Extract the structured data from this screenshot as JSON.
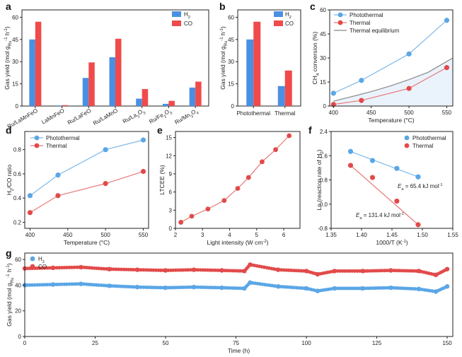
{
  "colors": {
    "blue_bar": "#4a90e2",
    "red_bar": "#f04a4a",
    "blue_point": "#5aa6e6",
    "blue_line": "#7fb8ea",
    "red_point": "#e24a4a",
    "red_line": "#e87878",
    "equilibrium_line": "#888888",
    "equilibrium_fill": "#eaf3fb"
  },
  "chart_data": [
    {
      "panel": "a",
      "type": "bar",
      "ylabel": "Gas yield (mol g_Ru^-1 h^-1)",
      "ylabel_parts": {
        "main": "Gas yield (mol g",
        "sub": "Ru",
        "sup": "-1",
        "tail": " h",
        "sup2": "-1",
        "close": ")"
      },
      "ylim": [
        0,
        65
      ],
      "yticks": [
        0,
        15,
        30,
        45,
        60
      ],
      "categories": [
        "Ru/LaMnFeO",
        "LaMnFeO",
        "Ru/LaFeO",
        "Ru/LaMnO",
        "Ru/La2O3",
        "Ru/Fe2O3",
        "Ru/Mn3O4"
      ],
      "category_labels": [
        {
          "main": "Ru/LaMnFeO"
        },
        {
          "main": "LaMnFeO"
        },
        {
          "main": "Ru/LaFeO"
        },
        {
          "main": "Ru/LaMnO"
        },
        {
          "main": "Ru/La",
          "sub": "2",
          "tail": "O",
          "sub2": "3"
        },
        {
          "main": "Ru/Fe",
          "sub": "2",
          "tail": "O",
          "sub2": "3"
        },
        {
          "main": "Ru/Mn",
          "sub": "3",
          "tail": "O",
          "sub2": "4"
        }
      ],
      "series": [
        {
          "name": "H2",
          "label_main": "H",
          "label_sub": "2",
          "color": "#4a90e2",
          "values": [
            45,
            0.4,
            19,
            33,
            5,
            1.5,
            12.5
          ]
        },
        {
          "name": "CO",
          "label_main": "CO",
          "color": "#f04a4a",
          "values": [
            57,
            0.6,
            29.5,
            45.5,
            11.5,
            3.5,
            16.5
          ]
        }
      ]
    },
    {
      "panel": "b",
      "type": "bar",
      "ylabel": "Gas yield (mol g_Ru^-1 h^-1)",
      "ylabel_parts": {
        "main": "Gas yield (mol g",
        "sub": "Ru",
        "sup": "-1",
        "tail": " h",
        "sup2": "-1",
        "close": ")"
      },
      "ylim": [
        0,
        65
      ],
      "yticks": [
        0,
        15,
        30,
        45,
        60
      ],
      "categories": [
        "Photothermal",
        "Thermal"
      ],
      "series": [
        {
          "name": "H2",
          "label_main": "H",
          "label_sub": "2",
          "color": "#4a90e2",
          "values": [
            45,
            13.5
          ]
        },
        {
          "name": "CO",
          "label_main": "CO",
          "color": "#f04a4a",
          "values": [
            57,
            24
          ]
        }
      ]
    },
    {
      "panel": "c",
      "type": "line",
      "xlabel": "Temperature (°C)",
      "ylabel": "CH4 conversion (%)",
      "ylabel_parts": {
        "main": "CH",
        "sub": "4",
        "tail": " conversion (%)"
      },
      "xlim": [
        395,
        558
      ],
      "ylim": [
        0,
        60
      ],
      "xticks": [
        400,
        450,
        500,
        550
      ],
      "yticks": [
        0,
        15,
        30,
        45,
        60
      ],
      "series": [
        {
          "name": "Photothermal",
          "x": [
            400,
            437,
            500,
            550
          ],
          "y": [
            8,
            16,
            32.5,
            53.5
          ]
        },
        {
          "name": "Thermal",
          "x": [
            400,
            437,
            500,
            550
          ],
          "y": [
            1,
            3.5,
            11,
            24
          ]
        },
        {
          "name": "Thermal equilibrium",
          "x": [
            400,
            425,
            450,
            475,
            500,
            525,
            558
          ],
          "y": [
            3,
            6,
            9,
            12.5,
            16.5,
            21,
            30
          ]
        }
      ]
    },
    {
      "panel": "d",
      "type": "line",
      "xlabel": "Temperature (°C)",
      "ylabel": "H2/CO ratio",
      "ylabel_parts": {
        "main": "H",
        "sub": "2",
        "tail": "/CO ratio"
      },
      "xlim": [
        393,
        557
      ],
      "ylim": [
        0.15,
        0.95
      ],
      "xticks": [
        400,
        450,
        500,
        550
      ],
      "yticks": [
        0.2,
        0.4,
        0.6,
        0.8
      ],
      "series": [
        {
          "name": "Photothermal",
          "x": [
            400,
            437,
            500,
            550
          ],
          "y": [
            0.42,
            0.59,
            0.8,
            0.88
          ]
        },
        {
          "name": "Thermal",
          "x": [
            400,
            437,
            500,
            550
          ],
          "y": [
            0.28,
            0.42,
            0.52,
            0.62
          ]
        }
      ]
    },
    {
      "panel": "e",
      "type": "line",
      "xlabel": "Light intensity (W cm-2)",
      "xlabel_parts": {
        "main": "Light intensity (W cm",
        "sup": "-2",
        "close": ")"
      },
      "ylabel": "LTCEE (%)",
      "xlim": [
        2,
        6.6
      ],
      "ylim": [
        0,
        16
      ],
      "xticks": [
        2,
        3,
        4,
        5,
        6
      ],
      "yticks": [
        0,
        3,
        6,
        9,
        12,
        15
      ],
      "series": [
        {
          "name": "LTCEE",
          "x": [
            2.2,
            2.6,
            3.2,
            3.8,
            4.3,
            4.7,
            5.2,
            5.7,
            6.2
          ],
          "y": [
            1,
            2,
            3.2,
            4.6,
            6.6,
            8.4,
            11,
            13,
            15.3
          ]
        }
      ]
    },
    {
      "panel": "f",
      "type": "scatter",
      "xlabel": "1000/T (K-1)",
      "xlabel_parts": {
        "main": "1000/T (K",
        "sup": "-1",
        "close": ")"
      },
      "ylabel": "Ln (reaction rate of H2)",
      "ylabel_parts": {
        "main": "Ln (reaction rate of H",
        "sub": "2",
        "close": ")"
      },
      "xlim": [
        1.35,
        1.55
      ],
      "ylim": [
        -0.8,
        2.4
      ],
      "xticks": [
        1.35,
        1.4,
        1.45,
        1.5,
        1.55
      ],
      "xtick_labels": [
        "1.35",
        "1.40",
        "1.45",
        "1.50",
        "1.55"
      ],
      "yticks": [
        -0.8,
        0.0,
        0.8,
        1.6,
        2.4
      ],
      "ytick_labels": [
        "-0.8",
        "0.0",
        "0.8",
        "1.6",
        "2.4"
      ],
      "series": [
        {
          "name": "Photothermal",
          "x": [
            1.382,
            1.418,
            1.458,
            1.493
          ],
          "y": [
            1.74,
            1.44,
            1.18,
            0.9
          ]
        },
        {
          "name": "Thermal",
          "x": [
            1.382,
            1.418,
            1.458,
            1.493
          ],
          "y": [
            1.28,
            0.88,
            0.1,
            -0.68
          ]
        }
      ],
      "annotations": [
        {
          "var": "E",
          "sub": "a",
          "text": " = 65.4 kJ mol",
          "sup": "-1"
        },
        {
          "var": "E",
          "sub": "a",
          "text": " = 131.4 kJ mol",
          "sup": "-1"
        }
      ]
    },
    {
      "panel": "g",
      "type": "scatter",
      "xlabel": "Time (h)",
      "ylabel": "Gas yield (mol g_Ru^-1 h^-1)",
      "ylabel_parts": {
        "main": "Gas yield (mol g",
        "sub": "Ru",
        "sup": "-1",
        "tail": " h",
        "sup2": "-1",
        "close": ")"
      },
      "xlim": [
        0,
        152
      ],
      "ylim": [
        0,
        65
      ],
      "xticks": [
        0,
        25,
        50,
        75,
        100,
        125,
        150
      ],
      "yticks": [
        0,
        20,
        40,
        60
      ],
      "series": [
        {
          "name": "H2",
          "label_main": "H",
          "label_sub": "2",
          "x": [
            0,
            10,
            20,
            30,
            40,
            50,
            60,
            70,
            78,
            80,
            90,
            100,
            104,
            110,
            120,
            130,
            140,
            146,
            150
          ],
          "y": [
            40,
            40.5,
            41,
            39.5,
            38.5,
            38,
            38.5,
            38,
            37.5,
            42,
            39,
            37.5,
            35.5,
            37.5,
            37.5,
            38,
            37,
            35,
            39
          ]
        },
        {
          "name": "CO",
          "label_main": "CO",
          "x": [
            0,
            10,
            20,
            30,
            40,
            50,
            60,
            70,
            78,
            80,
            90,
            100,
            104,
            110,
            120,
            130,
            140,
            146,
            150
          ],
          "y": [
            53,
            53.5,
            54,
            52.5,
            52,
            51.5,
            52,
            51.5,
            51,
            56,
            52,
            51,
            48.5,
            51,
            51,
            51.5,
            51,
            48,
            52.5
          ]
        }
      ]
    }
  ]
}
